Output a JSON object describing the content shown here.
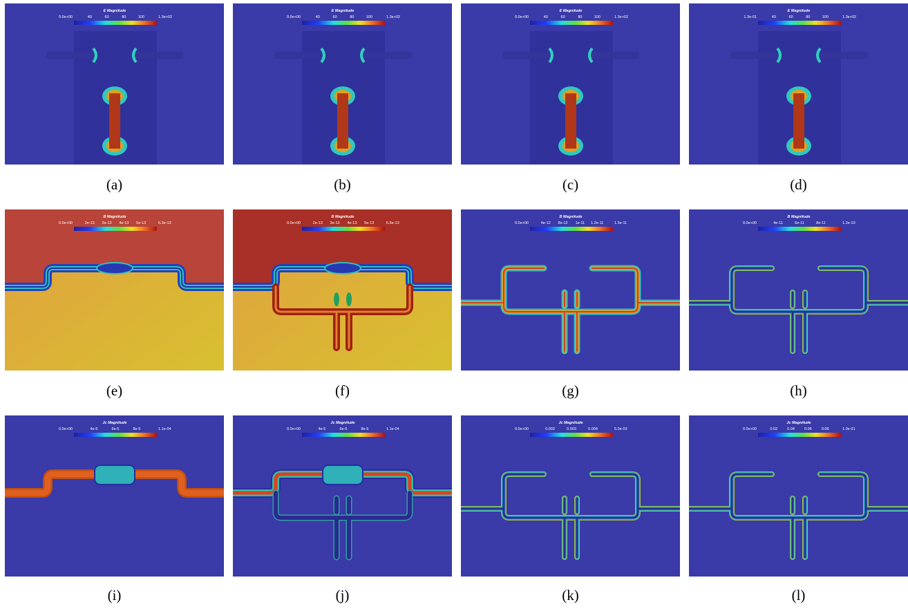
{
  "panels": [
    {
      "caption": "(a)",
      "colorbar": {
        "title": "E Magnitude",
        "ticks": [
          "0.0e+00",
          "40",
          "60",
          "80",
          "100",
          "1.3e+02"
        ]
      }
    },
    {
      "caption": "(b)",
      "colorbar": {
        "title": "E Magnitude",
        "ticks": [
          "0.0e+00",
          "40",
          "60",
          "80",
          "100",
          "1.3e+02"
        ]
      }
    },
    {
      "caption": "(c)",
      "colorbar": {
        "title": "E Magnitude",
        "ticks": [
          "0.0e+00",
          "40",
          "60",
          "80",
          "100",
          "1.3e+02"
        ]
      }
    },
    {
      "caption": "(d)",
      "colorbar": {
        "title": "E Magnitude",
        "ticks": [
          "1.3e-01",
          "40",
          "60",
          "80",
          "100",
          "1.3e+02"
        ]
      }
    },
    {
      "caption": "(e)",
      "colorbar": {
        "title": "B Magnitude",
        "ticks": [
          "0.0e+00",
          "2e-13",
          "3e-13",
          "4e-13",
          "5e-13",
          "6.3e-13"
        ]
      }
    },
    {
      "caption": "(f)",
      "colorbar": {
        "title": "B Magnitude",
        "ticks": [
          "0.0e+00",
          "2e-13",
          "3e-13",
          "4e-13",
          "5e-13",
          "6.6e-13"
        ]
      }
    },
    {
      "caption": "(g)",
      "colorbar": {
        "title": "B Magnitude",
        "ticks": [
          "0.0e+00",
          "4e-12",
          "8e-12",
          "1e-11",
          "1.2e-11",
          "1.5e-11"
        ]
      }
    },
    {
      "caption": "(h)",
      "colorbar": {
        "title": "B Magnitude",
        "ticks": [
          "0.0e+00",
          "4e-11",
          "6e-11",
          "8e-11",
          "1.2e-10"
        ]
      }
    },
    {
      "caption": "(i)",
      "colorbar": {
        "title": "Jc Magnitude",
        "ticks": [
          "0.0e+00",
          "4e-5",
          "6e-5",
          "8e-5",
          "1.1e-04"
        ]
      }
    },
    {
      "caption": "(j)",
      "colorbar": {
        "title": "Jc Magnitude",
        "ticks": [
          "0.0e+00",
          "4e-5",
          "6e-5",
          "8e-5",
          "1.1e-04"
        ]
      }
    },
    {
      "caption": "(k)",
      "colorbar": {
        "title": "Jc Magnitude",
        "ticks": [
          "0.0e+00",
          "0.002",
          "0.003",
          "0.004",
          "5.0e-03"
        ]
      }
    },
    {
      "caption": "(l)",
      "colorbar": {
        "title": "Jc Magnitude",
        "ticks": [
          "0.0e+00",
          "0.02",
          "0.04",
          "0.06",
          "0.08",
          "1.0e-01"
        ]
      }
    }
  ]
}
